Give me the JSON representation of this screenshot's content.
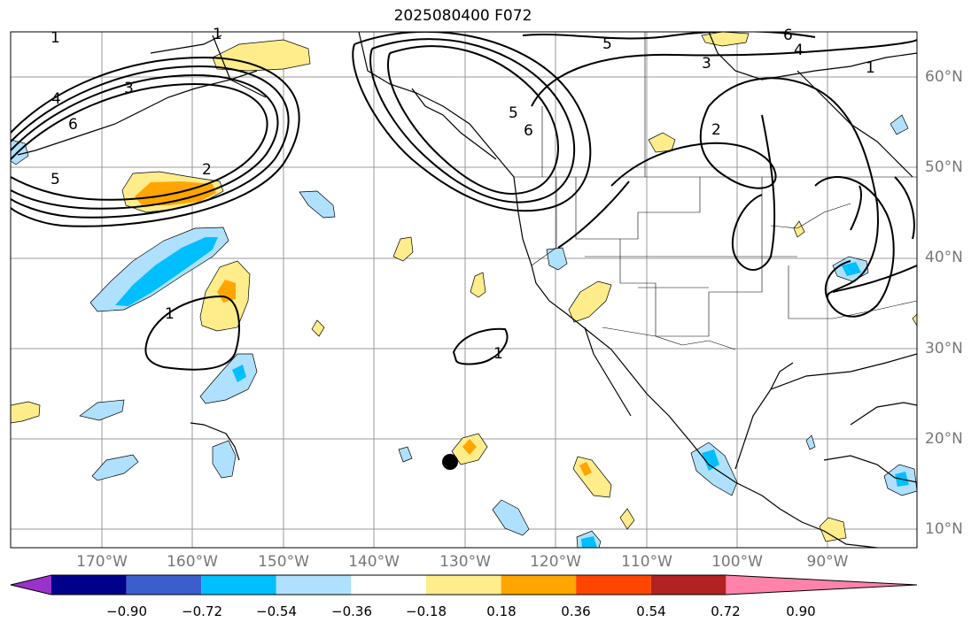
{
  "title": "2025080400 F072",
  "lat_labels": [
    "60°N",
    "50°N",
    "40°N",
    "30°N",
    "20°N",
    "10°N"
  ],
  "lon_labels": [
    "170°W",
    "160°W",
    "150°W",
    "140°W",
    "130°W",
    "120°W",
    "110°W",
    "100°W",
    "90°W"
  ],
  "colorbar": {
    "tick_labels": [
      "−0.90",
      "−0.72",
      "−0.54",
      "−0.36",
      "−0.18",
      "0.18",
      "0.36",
      "0.54",
      "0.72",
      "0.90"
    ],
    "colors": [
      "#9932cc",
      "#00008b",
      "#3a5fcd",
      "#00bfff",
      "#afe1ff",
      "#ffffff",
      "#ffec8b",
      "#ffa500",
      "#ff4500",
      "#b22222",
      "#ff82ab"
    ]
  },
  "contour_labels": [
    "1",
    "1",
    "4",
    "3",
    "6",
    "5",
    "2",
    "5",
    "6",
    "5",
    "3",
    "6",
    "4",
    "1",
    "2",
    "1",
    "1"
  ],
  "fill_colors": {
    "light_blue": "#afe1ff",
    "blue": "#00bfff",
    "light_yellow": "#ffec8b",
    "orange": "#ffa500"
  }
}
